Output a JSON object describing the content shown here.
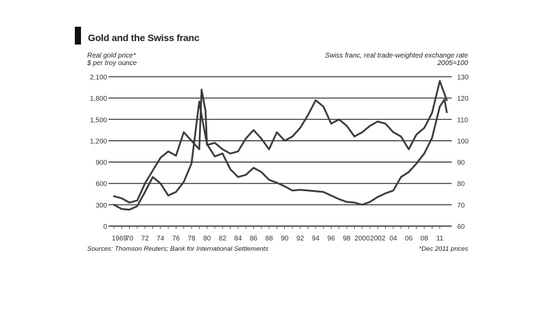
{
  "title": "Gold and the Swiss franc",
  "left_axis_title": [
    "Real gold price*",
    "$ per troy ounce"
  ],
  "right_axis_title": [
    "Swiss franc, real trade-weighted exchange rate",
    "2005=100"
  ],
  "source": "Sources: Thomson Reuters; Bank for International Settlements",
  "footnote": "*Dec 2011 prices",
  "chart_data": {
    "type": "line",
    "title": "Gold and the Swiss franc",
    "left_axis": {
      "label": "Real gold price*, $ per troy ounce",
      "ticks": [
        "0",
        "300",
        "600",
        "900",
        "1,200",
        "1,500",
        "1,800",
        "2,100"
      ],
      "ylim": [
        0,
        2100
      ]
    },
    "right_axis": {
      "label": "Swiss franc, real trade-weighted exchange rate, 2005=100",
      "ticks": [
        "60",
        "70",
        "80",
        "90",
        "100",
        "110",
        "120",
        "130"
      ],
      "ylim": [
        60,
        130
      ]
    },
    "x_tick_labels": [
      "1969",
      "70",
      "72",
      "74",
      "76",
      "78",
      "80",
      "82",
      "84",
      "86",
      "88",
      "90",
      "92",
      "94",
      "96",
      "98",
      "2000",
      "2002",
      "04",
      "06",
      "08",
      "11"
    ],
    "xlim": [
      1969,
      2012
    ],
    "series": [
      {
        "axis": "left",
        "points": [
          [
            1969,
            300
          ],
          [
            1970,
            240
          ],
          [
            1971,
            230
          ],
          [
            1972,
            280
          ],
          [
            1973,
            480
          ],
          [
            1974,
            690
          ],
          [
            1975,
            600
          ],
          [
            1976,
            430
          ],
          [
            1977,
            480
          ],
          [
            1978,
            620
          ],
          [
            1979,
            880
          ],
          [
            1980,
            1750
          ],
          [
            1980.4,
            1500
          ],
          [
            1981,
            1150
          ],
          [
            1982,
            980
          ],
          [
            1983,
            1020
          ],
          [
            1984,
            800
          ],
          [
            1985,
            690
          ],
          [
            1986,
            720
          ],
          [
            1987,
            820
          ],
          [
            1988,
            760
          ],
          [
            1989,
            650
          ],
          [
            1990,
            610
          ],
          [
            1991,
            560
          ],
          [
            1992,
            500
          ],
          [
            1993,
            510
          ],
          [
            1994,
            500
          ],
          [
            1995,
            490
          ],
          [
            1996,
            480
          ],
          [
            1997,
            430
          ],
          [
            1998,
            380
          ],
          [
            1999,
            340
          ],
          [
            2000,
            330
          ],
          [
            2001,
            300
          ],
          [
            2002,
            340
          ],
          [
            2003,
            410
          ],
          [
            2004,
            460
          ],
          [
            2005,
            500
          ],
          [
            2006,
            690
          ],
          [
            2007,
            760
          ],
          [
            2008,
            880
          ],
          [
            2009,
            1020
          ],
          [
            2010,
            1240
          ],
          [
            2011,
            1680
          ],
          [
            2011.6,
            1780
          ],
          [
            2011.9,
            1600
          ]
        ]
      },
      {
        "axis": "right",
        "points": [
          [
            1969,
            74
          ],
          [
            1970,
            73
          ],
          [
            1971,
            71
          ],
          [
            1972,
            72
          ],
          [
            1973,
            80
          ],
          [
            1974,
            86
          ],
          [
            1975,
            92
          ],
          [
            1976,
            95
          ],
          [
            1977,
            93
          ],
          [
            1978,
            104
          ],
          [
            1979,
            100
          ],
          [
            1980,
            96
          ],
          [
            1980.3,
            124
          ],
          [
            1980.8,
            114
          ],
          [
            1981,
            98
          ],
          [
            1982,
            99
          ],
          [
            1983,
            96
          ],
          [
            1984,
            94
          ],
          [
            1985,
            95
          ],
          [
            1986,
            101
          ],
          [
            1987,
            105
          ],
          [
            1988,
            101
          ],
          [
            1989,
            96
          ],
          [
            1990,
            104
          ],
          [
            1991,
            100
          ],
          [
            1992,
            102
          ],
          [
            1993,
            106
          ],
          [
            1994,
            112
          ],
          [
            1995,
            119
          ],
          [
            1996,
            116
          ],
          [
            1997,
            108
          ],
          [
            1998,
            110
          ],
          [
            1999,
            107
          ],
          [
            2000,
            102
          ],
          [
            2001,
            104
          ],
          [
            2002,
            107
          ],
          [
            2003,
            109
          ],
          [
            2004,
            108
          ],
          [
            2005,
            104
          ],
          [
            2006,
            102
          ],
          [
            2007,
            96
          ],
          [
            2008,
            103
          ],
          [
            2009,
            106
          ],
          [
            2010,
            113
          ],
          [
            2011,
            128
          ],
          [
            2011.9,
            119
          ]
        ]
      }
    ]
  }
}
